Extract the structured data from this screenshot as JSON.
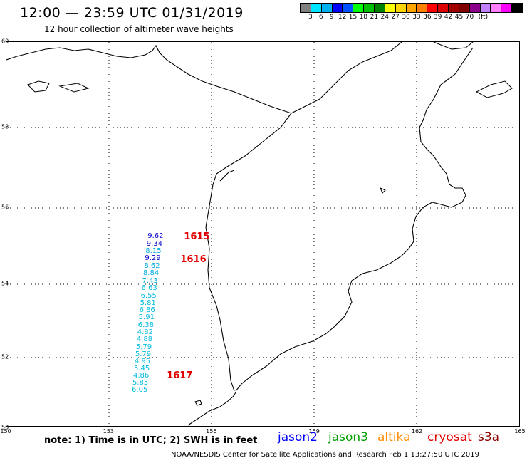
{
  "header": {
    "title": "12:00 — 23:59 UTC 01/31/2019",
    "subtitle": "12 hour collection of altimeter wave heights"
  },
  "legend": {
    "colors": [
      "#808080",
      "#00e5ff",
      "#00b0f0",
      "#0000ff",
      "#0050ff",
      "#00ff00",
      "#00c000",
      "#008000",
      "#ffff00",
      "#ffd700",
      "#ffa500",
      "#ff8000",
      "#ff0000",
      "#dd0000",
      "#a00000",
      "#800000",
      "#8b008b",
      "#c080ff",
      "#ff80ff",
      "#ff00ff",
      "#000000"
    ],
    "ticks": [
      "3",
      "6",
      "9",
      "12",
      "15",
      "18",
      "21",
      "24",
      "27",
      "30",
      "33",
      "36",
      "39",
      "42",
      "45",
      "70"
    ],
    "unit": "(ft)"
  },
  "map": {
    "lat_labels": [
      "60",
      "58",
      "56",
      "54",
      "52",
      "50"
    ],
    "lon_labels": [
      "150",
      "153",
      "156",
      "159",
      "162",
      "165"
    ],
    "wave_heights": [
      {
        "v": "9.62",
        "lat": 55.22,
        "lon": 154.18,
        "color": "#0000cc"
      },
      {
        "v": "9.34",
        "lat": 55.01,
        "lon": 154.15,
        "color": "#0000cc"
      },
      {
        "v": "8.15",
        "lat": 54.82,
        "lon": 154.12,
        "color": "#00aadd"
      },
      {
        "v": "9.29",
        "lat": 54.63,
        "lon": 154.1,
        "color": "#0000cc"
      },
      {
        "v": "8.62",
        "lat": 54.43,
        "lon": 154.08,
        "color": "#00aadd"
      },
      {
        "v": "8.84",
        "lat": 54.24,
        "lon": 154.05,
        "color": "#00aadd"
      },
      {
        "v": "7.43",
        "lat": 54.04,
        "lon": 154.02,
        "color": "#00aadd"
      },
      {
        "v": "6.63",
        "lat": 53.84,
        "lon": 154.0,
        "color": "#00bbdd"
      },
      {
        "v": "6.55",
        "lat": 53.64,
        "lon": 153.98,
        "color": "#00bbdd"
      },
      {
        "v": "5.81",
        "lat": 53.44,
        "lon": 153.96,
        "color": "#00bbdd"
      },
      {
        "v": "6.86",
        "lat": 53.24,
        "lon": 153.94,
        "color": "#00bbdd"
      },
      {
        "v": "5.91",
        "lat": 53.04,
        "lon": 153.92,
        "color": "#00bbdd"
      },
      {
        "v": "6.38",
        "lat": 52.84,
        "lon": 153.9,
        "color": "#00bbdd"
      },
      {
        "v": "4.82",
        "lat": 52.64,
        "lon": 153.88,
        "color": "#00bbdd"
      },
      {
        "v": "4.88",
        "lat": 52.44,
        "lon": 153.86,
        "color": "#00bbdd"
      },
      {
        "v": "5.79",
        "lat": 52.24,
        "lon": 153.84,
        "color": "#00bbdd"
      },
      {
        "v": "5.79",
        "lat": 52.04,
        "lon": 153.82,
        "color": "#00bbdd"
      },
      {
        "v": "4.95",
        "lat": 51.84,
        "lon": 153.8,
        "color": "#00bbdd"
      },
      {
        "v": "5.45",
        "lat": 51.64,
        "lon": 153.78,
        "color": "#00bbdd"
      },
      {
        "v": "4.86",
        "lat": 51.44,
        "lon": 153.76,
        "color": "#00bbdd"
      },
      {
        "v": "5.85",
        "lat": 51.24,
        "lon": 153.74,
        "color": "#00bbdd"
      },
      {
        "v": "6.05",
        "lat": 51.04,
        "lon": 153.72,
        "color": "#00bbdd"
      }
    ],
    "pass_labels": [
      {
        "v": "1615",
        "lat": 55.22,
        "lon": 155.2
      },
      {
        "v": "1616",
        "lat": 54.62,
        "lon": 155.1
      },
      {
        "v": "1617",
        "lat": 51.45,
        "lon": 154.7
      }
    ]
  },
  "footer": {
    "note": "note:  1) Time is in UTC;  2) SWH is in feet",
    "missions": [
      {
        "name": "jason2",
        "color": "#0000ff"
      },
      {
        "name": "jason3",
        "color": "#00a000"
      },
      {
        "name": "altika",
        "color": "#ff8c00"
      },
      {
        "name": "cryosat",
        "color": "#e00000"
      },
      {
        "name": "s3a",
        "color": "#8b0000"
      }
    ],
    "credit": "NOAA/NESDIS Center for Satellite Applications and Research    Feb  1 13:27:50 UTC 2019"
  }
}
